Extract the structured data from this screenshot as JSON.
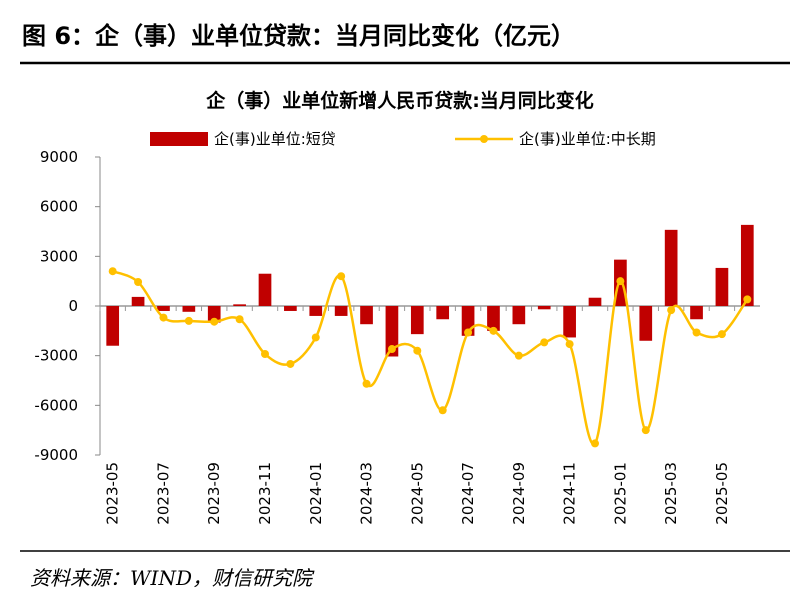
{
  "figure_title": "图 6：企（事）业单位贷款：当月同比变化（亿元）",
  "source": "资料来源：WIND，财信研究院",
  "chart_data": {
    "type": "bar_line",
    "title": "企（事）业单位新增人民币贷款:当月同比变化",
    "categories": [
      "2023-05",
      null,
      "2023-07",
      null,
      "2023-09",
      null,
      "2023-11",
      null,
      "2024-01",
      null,
      "2024-03",
      null,
      "2024-05",
      null,
      "2024-07",
      null,
      "2024-09",
      null,
      "2024-11",
      null,
      "2025-01",
      null,
      "2025-03",
      null,
      "2025-05",
      null
    ],
    "series": [
      {
        "name": "企(事)业单位:短贷",
        "type": "bar",
        "color": "#c00000",
        "values": [
          -2400,
          550,
          -300,
          -350,
          -1000,
          100,
          1950,
          -300,
          -600,
          -600,
          -1100,
          -3050,
          -1700,
          -800,
          -1800,
          -1500,
          -1100,
          -200,
          -1900,
          500,
          2800,
          -2100,
          4600,
          -800,
          2300,
          4900
        ]
      },
      {
        "name": "企(事)业单位:中长期",
        "type": "line",
        "color": "#ffc000",
        "values": [
          2100,
          1450,
          -700,
          -900,
          -950,
          -800,
          -2900,
          -3500,
          -1900,
          1800,
          -4700,
          -2600,
          -2700,
          -6300,
          -1600,
          -1500,
          -3000,
          -2200,
          -2300,
          -8300,
          1500,
          -7500,
          -250,
          -1600,
          -1700,
          400
        ]
      }
    ],
    "ylim": [
      -9000,
      9000
    ],
    "yticks": [
      -9000,
      -6000,
      -3000,
      0,
      3000,
      6000,
      9000
    ],
    "legend": "top"
  }
}
